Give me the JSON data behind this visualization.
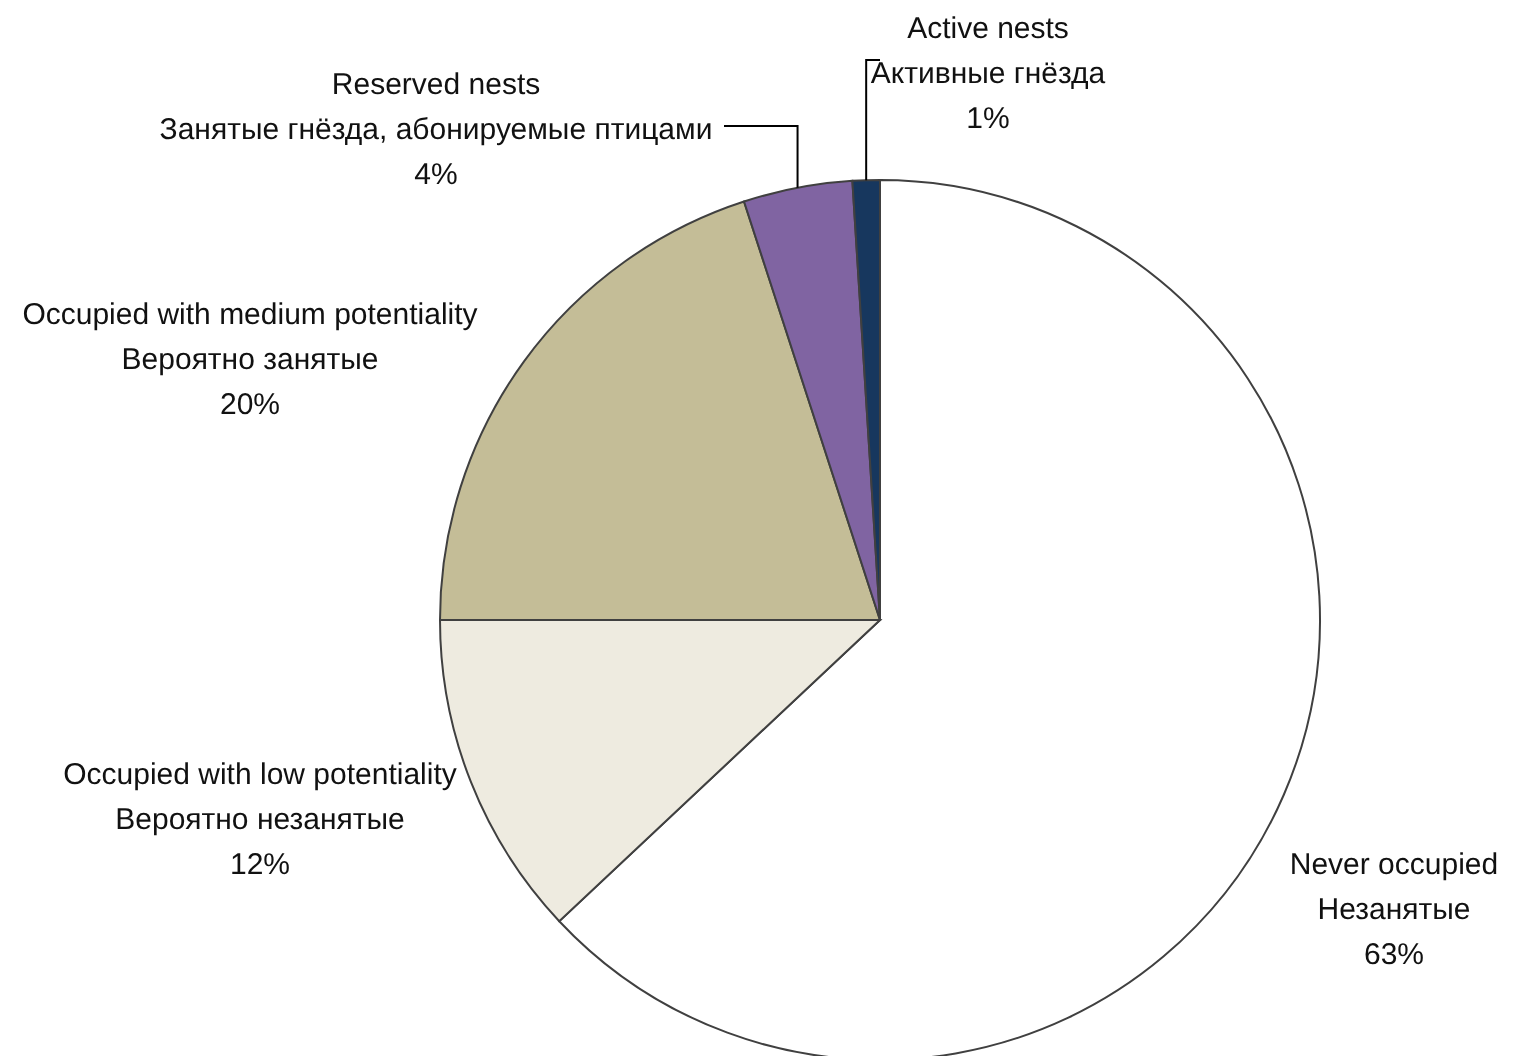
{
  "chart_data": {
    "type": "pie",
    "categories": [
      "Never occupied\nНезанятые",
      "Occupied with low potentiality\nВероятно незанятые",
      "Occupied with medium potentiality\nВероятно занятые",
      "Reserved nests\nЗанятые гнёзда, абонируемые птицами",
      "Active nests\nАктивные гнёзда"
    ],
    "values": [
      63,
      12,
      20,
      4,
      1
    ],
    "value_labels": [
      "63%",
      "12%",
      "20%",
      "4%",
      "1%"
    ],
    "colors": [
      "#ffffff",
      "#eeebe0",
      "#c4bd97",
      "#8064a2",
      "#17375e"
    ]
  }
}
